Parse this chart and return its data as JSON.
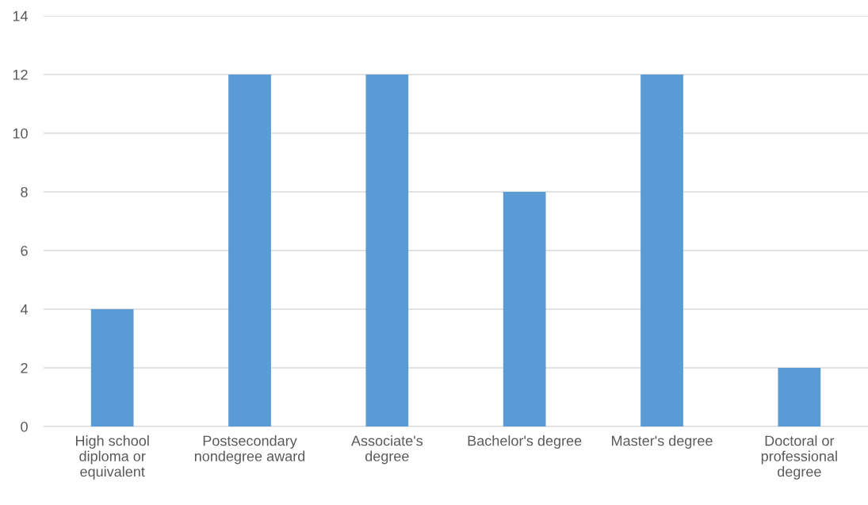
{
  "chart_data": {
    "type": "bar",
    "categories": [
      "High school\ndiploma or\nequivalent",
      "Postsecondary\nnondegree award",
      "Associate's\ndegree",
      "Bachelor's degree",
      "Master's degree",
      "Doctoral or\nprofessional\ndegree"
    ],
    "values": [
      4,
      12,
      12,
      8,
      12,
      2
    ],
    "color": "#5b9bd5",
    "ylim": [
      0,
      14
    ],
    "yticks": [
      0,
      2,
      4,
      6,
      8,
      10,
      12,
      14
    ],
    "grid": "y",
    "legend": false
  }
}
